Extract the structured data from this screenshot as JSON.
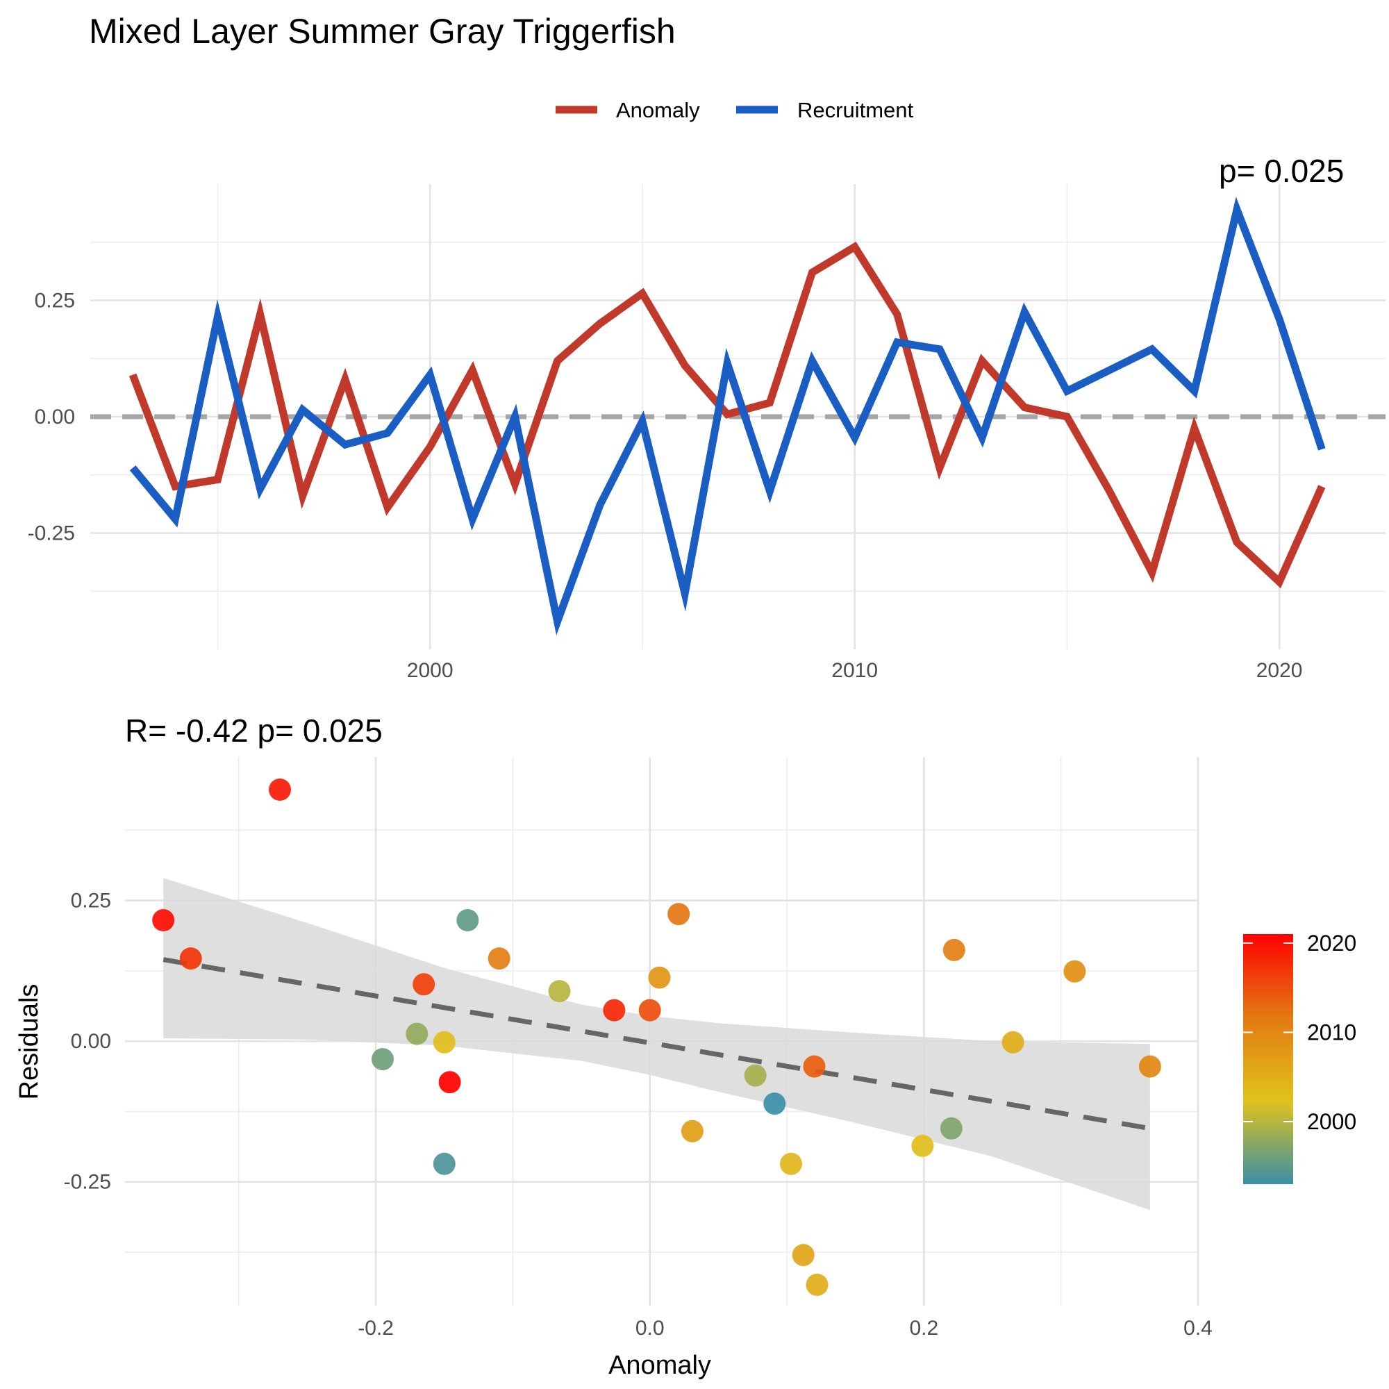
{
  "title": "Mixed Layer Summer Gray Triggerfish",
  "chart_data": [
    {
      "type": "line",
      "xlabel": "",
      "ylabel": "",
      "xlim": [
        1992.0,
        2022.5
      ],
      "ylim": [
        -0.5,
        0.5
      ],
      "x_ticks": [
        2000,
        2010,
        2020
      ],
      "y_ticks": [
        -0.25,
        0.0,
        0.25
      ],
      "grid": true,
      "legend_position": "top",
      "reference_line": {
        "y": 0,
        "style": "dashed",
        "color": "#a6a6a6"
      },
      "clipped_annotation": "p= 0.025",
      "x": [
        1993,
        1994,
        1995,
        1996,
        1997,
        1998,
        1999,
        2000,
        2001,
        2002,
        2003,
        2004,
        2005,
        2006,
        2007,
        2008,
        2009,
        2010,
        2011,
        2012,
        2013,
        2014,
        2015,
        2016,
        2017,
        2018,
        2019,
        2020,
        2021
      ],
      "series": [
        {
          "name": "Anomaly",
          "color": "#c0392b",
          "values": [
            0.09,
            -0.15,
            -0.135,
            0.22,
            -0.17,
            0.08,
            -0.195,
            -0.065,
            0.1,
            -0.145,
            0.12,
            0.2,
            0.265,
            0.11,
            0.005,
            0.03,
            0.31,
            0.365,
            0.22,
            -0.11,
            0.12,
            0.02,
            0.0,
            -0.16,
            -0.335,
            -0.025,
            -0.27,
            -0.355,
            -0.15
          ]
        },
        {
          "name": "Recruitment",
          "color": "#1a5ec4",
          "values": [
            -0.11,
            -0.22,
            0.215,
            -0.155,
            0.015,
            -0.06,
            -0.035,
            0.09,
            -0.22,
            0.0,
            -0.44,
            -0.19,
            -0.01,
            -0.38,
            0.115,
            -0.16,
            0.12,
            -0.045,
            0.16,
            0.145,
            -0.045,
            0.225,
            0.055,
            0.1,
            0.145,
            0.055,
            0.445,
            0.21,
            -0.07
          ]
        }
      ]
    },
    {
      "type": "scatter",
      "subtitle": "R= -0.42  p= 0.025",
      "xlabel": "Anomaly",
      "ylabel": "Residuals",
      "xlim": [
        -0.383,
        0.4
      ],
      "ylim": [
        -0.47,
        0.505
      ],
      "x_ticks": [
        -0.2,
        0.0,
        0.2,
        0.4
      ],
      "x_tick_labels": [
        "-0.2",
        "0.0",
        "0.2",
        "0.4"
      ],
      "y_ticks": [
        -0.25,
        0.0,
        0.25
      ],
      "y_tick_labels": [
        "-0.25",
        "0.00",
        "0.25"
      ],
      "grid": true,
      "colorbar": {
        "title": "",
        "ticks": [
          2000,
          2010,
          2020
        ],
        "range": [
          1993,
          2021
        ],
        "colors": [
          "#3a8fa6",
          "#e0c21c",
          "#e37a12",
          "#ff0000"
        ],
        "position": "right"
      },
      "fit": {
        "type": "linear",
        "style": "dashed",
        "color": "#666666",
        "x_range": [
          -0.355,
          0.365
        ],
        "y_at_ends": [
          0.145,
          -0.155
        ],
        "ci_band": {
          "color": "#d9d9d9",
          "x": [
            -0.355,
            -0.25,
            -0.15,
            -0.05,
            0.0,
            0.05,
            0.15,
            0.25,
            0.365
          ],
          "upper": [
            0.29,
            0.21,
            0.13,
            0.065,
            0.045,
            0.032,
            0.015,
            0.0,
            -0.005
          ],
          "lower": [
            0.005,
            0.003,
            -0.008,
            -0.035,
            -0.06,
            -0.09,
            -0.145,
            -0.205,
            -0.3
          ]
        }
      },
      "points": [
        {
          "x": -0.355,
          "y": 0.215,
          "year": 2020
        },
        {
          "x": -0.335,
          "y": 0.147,
          "year": 2017
        },
        {
          "x": -0.27,
          "y": 0.447,
          "year": 2019
        },
        {
          "x": -0.195,
          "y": -0.032,
          "year": 1996
        },
        {
          "x": -0.165,
          "y": 0.101,
          "year": 2016
        },
        {
          "x": -0.17,
          "y": 0.013,
          "year": 1998
        },
        {
          "x": -0.15,
          "y": -0.002,
          "year": 2003
        },
        {
          "x": -0.146,
          "y": -0.073,
          "year": 2021
        },
        {
          "x": -0.15,
          "y": -0.218,
          "year": 1994
        },
        {
          "x": -0.133,
          "y": 0.215,
          "year": 1995
        },
        {
          "x": -0.11,
          "y": 0.147,
          "year": 2011
        },
        {
          "x": -0.066,
          "y": 0.089,
          "year": 2000
        },
        {
          "x": -0.026,
          "y": 0.055,
          "year": 2018
        },
        {
          "x": 0.0,
          "y": 0.055,
          "year": 2015
        },
        {
          "x": 0.007,
          "y": 0.113,
          "year": 2008
        },
        {
          "x": 0.021,
          "y": 0.226,
          "year": 2012
        },
        {
          "x": 0.031,
          "y": -0.16,
          "year": 2007
        },
        {
          "x": 0.077,
          "y": -0.061,
          "year": 1999
        },
        {
          "x": 0.091,
          "y": -0.111,
          "year": 1993
        },
        {
          "x": 0.103,
          "y": -0.218,
          "year": 2004
        },
        {
          "x": 0.112,
          "y": -0.38,
          "year": 2006
        },
        {
          "x": 0.12,
          "y": -0.045,
          "year": 2014
        },
        {
          "x": 0.122,
          "y": -0.433,
          "year": 2005
        },
        {
          "x": 0.199,
          "y": -0.186,
          "year": 2003
        },
        {
          "x": 0.22,
          "y": -0.155,
          "year": 1997
        },
        {
          "x": 0.222,
          "y": 0.162,
          "year": 2011
        },
        {
          "x": 0.265,
          "y": -0.002,
          "year": 2005
        },
        {
          "x": 0.31,
          "y": 0.124,
          "year": 2009
        },
        {
          "x": 0.365,
          "y": -0.045,
          "year": 2010
        }
      ]
    }
  ]
}
